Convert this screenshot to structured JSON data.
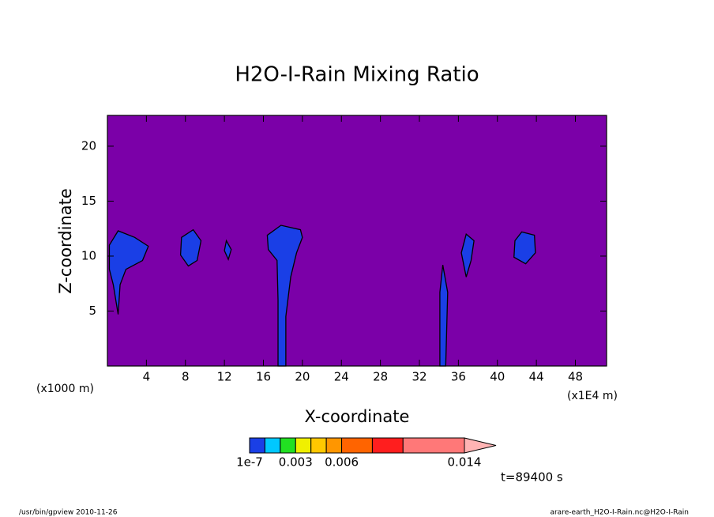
{
  "chart_data": {
    "type": "contour",
    "title": "H2O-I-Rain Mixing Ratio",
    "x_label": "X-coordinate",
    "y_label": "Z-coordinate",
    "x_unit_left": "(x1000 m)",
    "x_unit_right": "(x1E4 m)",
    "time_label": "t=89400 s",
    "footer_left": "/usr/bin/gpview  2010-11-26",
    "footer_right": "arare-earth_H2O-I-Rain.nc@H2O-I-Rain",
    "xlim": [
      0,
      51.2
    ],
    "ylim": [
      0,
      22.8
    ],
    "xticks": [
      4,
      8,
      12,
      16,
      20,
      24,
      28,
      32,
      36,
      40,
      44,
      48
    ],
    "yticks": [
      5,
      10,
      15,
      20
    ],
    "below_color": "#7b00a8",
    "colorbar": {
      "levels": [
        1e-07,
        0.001,
        0.002,
        0.003,
        0.004,
        0.005,
        0.006,
        0.008,
        0.01,
        0.014
      ],
      "level_labels": [
        "1e-7",
        null,
        null,
        "0.003",
        null,
        null,
        "0.006",
        null,
        null,
        "0.014"
      ],
      "colors": [
        "#1a3fe6",
        "#00c8ff",
        "#22e022",
        "#f0f000",
        "#ffc800",
        "#ff9600",
        "#ff6400",
        "#ff1e1e",
        "#ff7878",
        "#ffb4b4"
      ]
    },
    "regions": [
      {
        "level": 0,
        "x": [
          0.2,
          1.1,
          2.8,
          4.2,
          3.6,
          1.9,
          1.3,
          1.1,
          0.6,
          0.2
        ],
        "y": [
          11.0,
          12.3,
          11.7,
          10.9,
          9.6,
          8.8,
          7.4,
          4.7,
          7.4,
          8.8
        ]
      },
      {
        "level": 0,
        "x": [
          7.6,
          8.8,
          9.6,
          9.2,
          8.3,
          7.5
        ],
        "y": [
          11.7,
          12.4,
          11.4,
          9.6,
          9.1,
          10.1
        ]
      },
      {
        "level": 0,
        "x": [
          12.2,
          12.7,
          12.4,
          12.0
        ],
        "y": [
          11.4,
          10.6,
          9.7,
          10.5
        ]
      },
      {
        "level": 0,
        "x": [
          16.4,
          17.8,
          19.8,
          20.0,
          19.4,
          18.8,
          18.3,
          18.3,
          17.5,
          17.5,
          17.4,
          16.5
        ],
        "y": [
          11.9,
          12.8,
          12.4,
          11.7,
          10.3,
          8.1,
          4.5,
          0,
          0,
          6.0,
          9.6,
          10.6
        ]
      },
      {
        "level": 0,
        "x": [
          34.4,
          34.9,
          34.7,
          34.1,
          34.1
        ],
        "y": [
          9.2,
          6.7,
          0,
          0,
          6.7
        ]
      },
      {
        "level": 0,
        "x": [
          36.8,
          37.6,
          37.3,
          36.8,
          36.3
        ],
        "y": [
          12.0,
          11.4,
          9.6,
          8.1,
          10.3
        ]
      },
      {
        "level": 0,
        "x": [
          42.5,
          43.8,
          43.9,
          42.9,
          41.7,
          41.8
        ],
        "y": [
          12.2,
          11.9,
          10.3,
          9.3,
          9.9,
          11.4
        ]
      }
    ]
  }
}
